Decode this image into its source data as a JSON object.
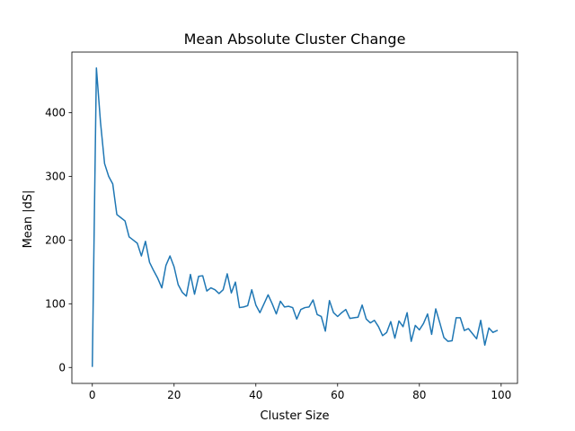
{
  "chart_data": {
    "type": "line",
    "title": "Mean Absolute Cluster Change",
    "xlabel": "Cluster Size",
    "ylabel": "Mean |dS|",
    "xlim": [
      -5,
      104
    ],
    "ylim": [
      -25,
      495
    ],
    "xticks": [
      0,
      20,
      40,
      60,
      80,
      100
    ],
    "yticks": [
      0,
      100,
      200,
      300,
      400
    ],
    "grid": false,
    "line_color": "#1f77b4",
    "series": [
      {
        "x": [
          0,
          1,
          2,
          3,
          4,
          5,
          6,
          7,
          8,
          9,
          10,
          11,
          12,
          13,
          14,
          15,
          16,
          17,
          18,
          19,
          20,
          21,
          22,
          23,
          24,
          25,
          26,
          27,
          28,
          29,
          30,
          31,
          32,
          33,
          34,
          35,
          36,
          37,
          38,
          39,
          40,
          41,
          42,
          43,
          44,
          45,
          46,
          47,
          48,
          49,
          50,
          51,
          52,
          53,
          54,
          55,
          56,
          57,
          58,
          59,
          60,
          61,
          62,
          63,
          64,
          65,
          66,
          67,
          68,
          69,
          70,
          71,
          72,
          73,
          74,
          75,
          76,
          77,
          78,
          79,
          80,
          81,
          82,
          83,
          84,
          85,
          86,
          87,
          88,
          89,
          90,
          91,
          92,
          93,
          94,
          95,
          96,
          97,
          98,
          99
        ],
        "values": [
          2,
          470,
          385,
          320,
          300,
          288,
          240,
          235,
          230,
          205,
          200,
          195,
          175,
          198,
          165,
          152,
          140,
          125,
          160,
          175,
          158,
          130,
          118,
          112,
          146,
          115,
          143,
          144,
          120,
          125,
          122,
          116,
          122,
          147,
          117,
          134,
          94,
          95,
          97,
          122,
          98,
          86,
          100,
          114,
          100,
          84,
          104,
          95,
          96,
          94,
          76,
          91,
          94,
          95,
          106,
          83,
          80,
          57,
          105,
          86,
          80,
          86,
          91,
          77,
          78,
          79,
          98,
          76,
          70,
          74,
          64,
          50,
          55,
          72,
          46,
          73,
          64,
          86,
          41,
          66,
          59,
          69,
          84,
          52,
          92,
          70,
          47,
          41,
          42,
          78,
          78,
          58,
          61,
          53,
          45,
          74,
          35,
          62,
          55,
          58
        ]
      }
    ]
  }
}
